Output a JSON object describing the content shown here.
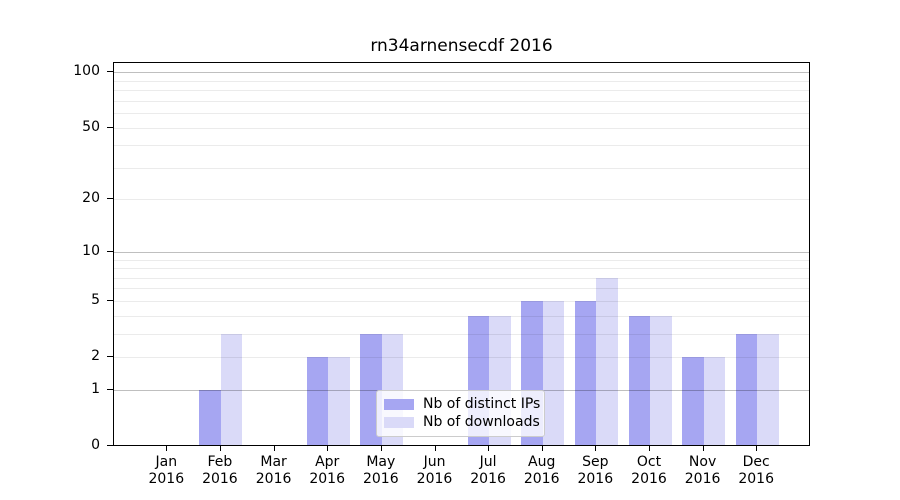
{
  "chart_data": {
    "type": "bar",
    "title": "rn34arnensecdf 2016",
    "categories": [
      "Jan",
      "Feb",
      "Mar",
      "Apr",
      "May",
      "Jun",
      "Jul",
      "Aug",
      "Sep",
      "Oct",
      "Nov",
      "Dec"
    ],
    "year_label": "2016",
    "series": [
      {
        "name": "Nb of distinct IPs",
        "color": "#a6a6f2",
        "values": [
          0,
          1,
          0,
          2,
          3,
          0,
          4,
          5,
          5,
          4,
          2,
          3
        ]
      },
      {
        "name": "Nb of downloads",
        "color": "#dadaf8",
        "values": [
          0,
          3,
          0,
          2,
          3,
          0,
          4,
          5,
          7,
          4,
          2,
          3
        ]
      }
    ],
    "yscale": "log1p",
    "ylim": [
      0,
      112
    ],
    "ytick_labels": [
      0,
      1,
      2,
      5,
      10,
      20,
      50,
      100
    ],
    "grid_major": [
      1,
      10,
      100
    ],
    "grid_minor": [
      2,
      3,
      4,
      5,
      6,
      7,
      8,
      9,
      20,
      30,
      40,
      50,
      60,
      70,
      80,
      90
    ],
    "grid": "on",
    "legend_position": "lower-center"
  }
}
